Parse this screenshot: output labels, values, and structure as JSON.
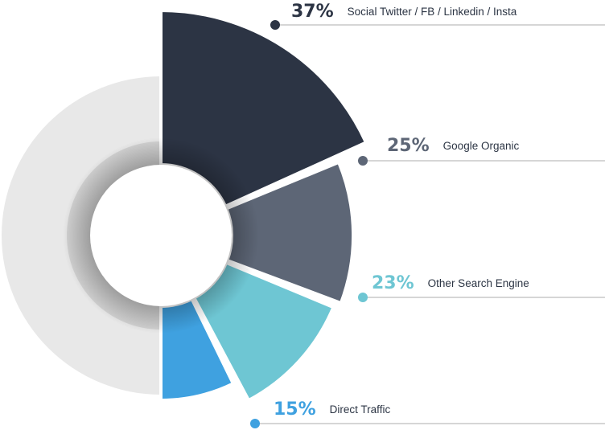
{
  "chart_data": {
    "type": "pie",
    "variant": "half-exploded-donut",
    "series": [
      {
        "name": "Social Twitter / FB / Linkedin / Insta",
        "value": 37,
        "value_label": "37%",
        "color": "#2c3444"
      },
      {
        "name": "Google Organic",
        "value": 25,
        "value_label": "25%",
        "color": "#5d6676"
      },
      {
        "name": "Other Search Engine",
        "value": 23,
        "value_label": "23%",
        "color": "#6ec6d3"
      },
      {
        "name": "Direct Traffic",
        "value": 15,
        "value_label": "15%",
        "color": "#3fa1e0"
      }
    ],
    "legend": "right",
    "colors": {
      "ghost_half": "#e8e8e8",
      "leader_line": "#c8c8c8"
    }
  }
}
